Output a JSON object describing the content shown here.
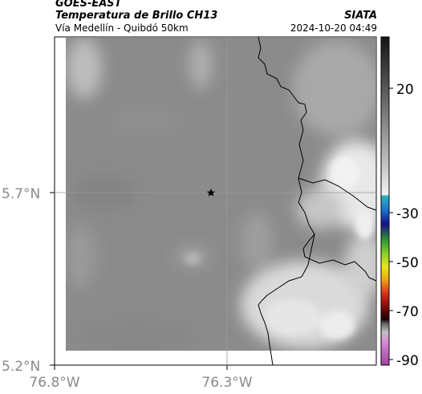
{
  "header": {
    "satellite": "GOES-EAST",
    "product": "Temperatura de Brillo CH13",
    "region": "Vía Medellín - Quibdó 50km",
    "organization": "SIATA",
    "datetime": "2024-10-20 04:49"
  },
  "map": {
    "lat_labels": [
      "5.7°N",
      "5.2°N"
    ],
    "lon_labels": [
      "76.8°W",
      "76.3°W"
    ],
    "marker": "star-icon",
    "field": "brightness temperature"
  },
  "colorbar": {
    "tick_labels": [
      "20",
      "-30",
      "-50",
      "-70",
      "-90"
    ],
    "colors": [
      "#1c1c1c",
      "#3c3c3c",
      "#6e6e6e",
      "#a0a0a0",
      "#d2d2d2",
      "#f0f0f0",
      "#2ab3c0",
      "#1a7fd0",
      "#1434a8",
      "#17108a",
      "#2e9a2e",
      "#7ad02a",
      "#e8e41e",
      "#f2a316",
      "#e2461a",
      "#a81012",
      "#6a0505",
      "#2a0202",
      "#707070",
      "#a0a0a0",
      "#c8c8c8",
      "#d58ad5",
      "#b04cb0"
    ]
  }
}
